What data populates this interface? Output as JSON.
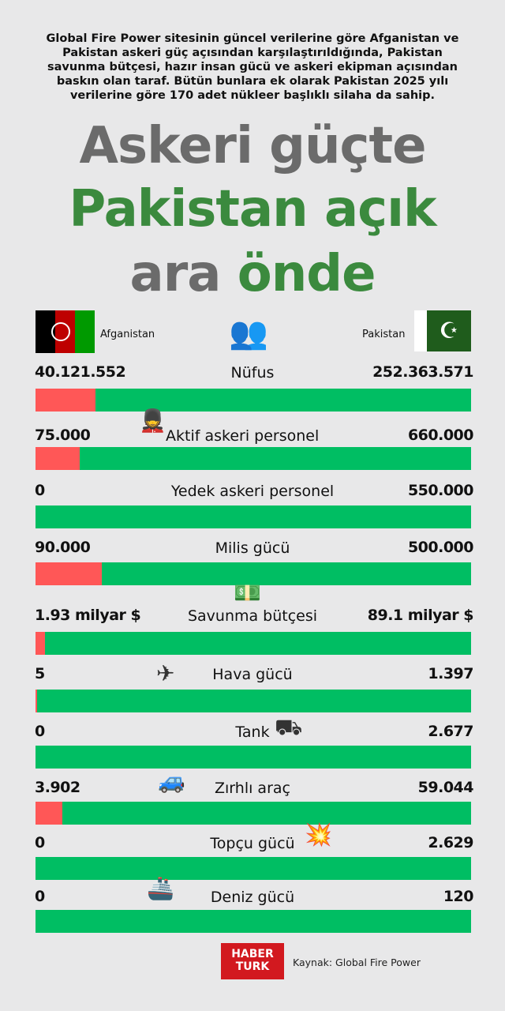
{
  "intro": "Global Fire Power sitesinin güncel verilerine göre Afganistan ve Pakistan askeri güç açısından karşılaştırıldığında, Pakistan savunma bütçesi, hazır insan gücü ve askeri ekipman açısından baskın olan taraf. Bütün bunlara ek olarak Pakistan 2025 yılı verilerine göre 170 adet nükleer başlıklı silaha da sahip.",
  "title": {
    "line1": "Askeri güçte",
    "line2": "Pakistan açık",
    "line3a": "ara ",
    "line3b": "önde"
  },
  "countries": {
    "left": "Afganistan",
    "right": "Pakistan"
  },
  "colors": {
    "afghanistan": "#ff5757",
    "pakistan": "#00be63",
    "title_green": "#3b8a3e",
    "title_grey": "#6b6b6b"
  },
  "chart_data": {
    "type": "bar",
    "subtype": "stacked-share-comparison",
    "series": [
      {
        "name": "Afganistan"
      },
      {
        "name": "Pakistan"
      }
    ],
    "rows": [
      {
        "label": "Nüfus",
        "left": "40.121.552",
        "right": "252.363.571",
        "a": 40121552,
        "b": 252363571,
        "icon": "people-icon"
      },
      {
        "label": "Aktif askeri personel",
        "left": "75.000",
        "right": "660.000",
        "a": 75000,
        "b": 660000,
        "icon": "soldier-icon"
      },
      {
        "label": "Yedek askeri personel",
        "left": "0",
        "right": "550.000",
        "a": 0,
        "b": 550000,
        "icon": ""
      },
      {
        "label": "Milis gücü",
        "left": "90.000",
        "right": "500.000",
        "a": 90000,
        "b": 500000,
        "icon": ""
      },
      {
        "label": "Savunma bütçesi",
        "left": "1.93 milyar $",
        "right": "89.1 milyar $",
        "a": 1.93,
        "b": 89.1,
        "icon": "money-icon"
      },
      {
        "label": "Hava gücü",
        "left": "5",
        "right": "1.397",
        "a": 5,
        "b": 1397,
        "icon": "jet-icon"
      },
      {
        "label": "Tank",
        "left": "0",
        "right": "2.677",
        "a": 0,
        "b": 2677,
        "icon": "tank-icon"
      },
      {
        "label": "Zırhlı araç",
        "left": "3.902",
        "right": "59.044",
        "a": 3902,
        "b": 59044,
        "icon": "armored-vehicle-icon"
      },
      {
        "label": "Topçu gücü",
        "left": "0",
        "right": "2.629",
        "a": 0,
        "b": 2629,
        "icon": "artillery-icon"
      },
      {
        "label": "Deniz gücü",
        "left": "0",
        "right": "120",
        "a": 0,
        "b": 120,
        "icon": "warship-icon"
      }
    ]
  },
  "footer": {
    "logo_line1": "HABER",
    "logo_line2": "TURK",
    "source": "Kaynak: Global Fire Power"
  }
}
